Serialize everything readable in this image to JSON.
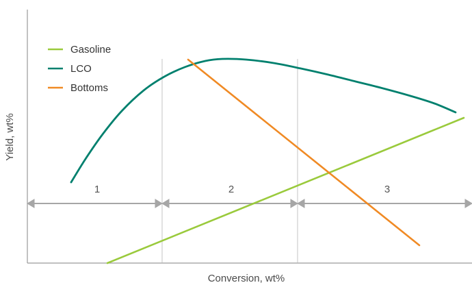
{
  "chart_data": {
    "type": "line",
    "title": "",
    "xlabel": "Conversion, wt%",
    "ylabel": "Yield, wt%",
    "grid": false,
    "legend_position": "top-left",
    "series": [
      {
        "name": "Gasoline",
        "color": "#9ACA3C",
        "points": [
          [
            157,
            384
          ],
          [
            678,
            172
          ]
        ]
      },
      {
        "name": "LCO",
        "color": "#00806E",
        "points": [
          [
            104,
            266
          ],
          [
            125,
            232
          ],
          [
            150,
            196
          ],
          [
            178,
            162
          ],
          [
            210,
            132
          ],
          [
            240,
            112
          ],
          [
            270,
            98
          ],
          [
            300,
            89
          ],
          [
            325,
            86
          ],
          [
            360,
            87
          ],
          [
            400,
            92
          ],
          [
            440,
            100
          ],
          [
            480,
            109
          ],
          [
            520,
            119
          ],
          [
            560,
            129
          ],
          [
            600,
            140
          ],
          [
            635,
            151
          ],
          [
            666,
            164
          ]
        ]
      },
      {
        "name": "Bottoms",
        "color": "#F08A24",
        "points": [
          [
            275,
            87
          ],
          [
            613,
            358
          ]
        ]
      }
    ],
    "regions": [
      {
        "label": "1"
      },
      {
        "label": "2"
      },
      {
        "label": "3"
      }
    ]
  }
}
